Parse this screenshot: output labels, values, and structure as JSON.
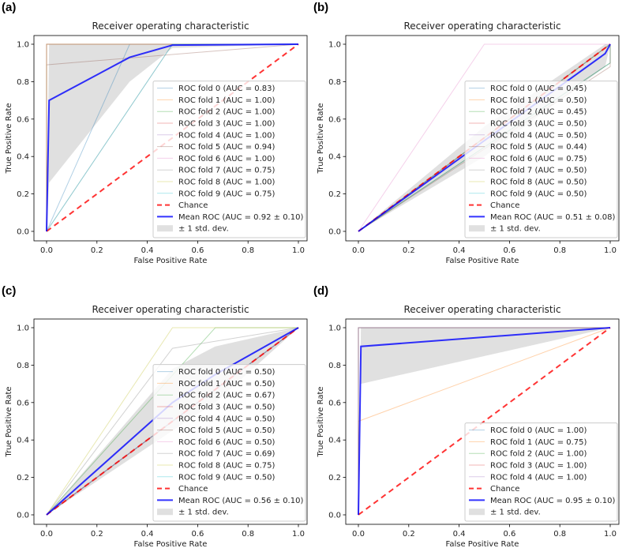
{
  "chart_data": [
    {
      "panel_label": "(a)",
      "type": "line",
      "title": "Receiver operating characteristic",
      "xlabel": "False Positive Rate",
      "ylabel": "True Positive Rate",
      "xlim": [
        0,
        1
      ],
      "ylim": [
        0,
        1
      ],
      "xticks": [
        "0.0",
        "0.2",
        "0.4",
        "0.6",
        "0.8",
        "1.0"
      ],
      "yticks": [
        "0.0",
        "0.2",
        "0.4",
        "0.6",
        "0.8",
        "1.0"
      ],
      "legend_position": "lower right",
      "folds": [
        {
          "name": "ROC fold 0 (AUC = 0.83)",
          "x": [
            0,
            0.33,
            1
          ],
          "y": [
            0,
            1,
            1
          ]
        },
        {
          "name": "ROC fold 1 (AUC = 1.00)",
          "x": [
            0,
            0,
            1
          ],
          "y": [
            0,
            1,
            1
          ]
        },
        {
          "name": "ROC fold 2 (AUC = 1.00)",
          "x": [
            0,
            0,
            1
          ],
          "y": [
            0,
            1,
            1
          ]
        },
        {
          "name": "ROC fold 3 (AUC = 1.00)",
          "x": [
            0,
            0,
            1
          ],
          "y": [
            0,
            1,
            1
          ]
        },
        {
          "name": "ROC fold 4 (AUC = 1.00)",
          "x": [
            0,
            0,
            1
          ],
          "y": [
            0,
            1,
            1
          ]
        },
        {
          "name": "ROC fold 5 (AUC = 0.94)",
          "x": [
            0,
            0,
            1
          ],
          "y": [
            0,
            0.89,
            1
          ]
        },
        {
          "name": "ROC fold 6 (AUC = 1.00)",
          "x": [
            0,
            0,
            1
          ],
          "y": [
            0,
            1,
            1
          ]
        },
        {
          "name": "ROC fold 7 (AUC = 0.75)",
          "x": [
            0,
            0.5,
            1
          ],
          "y": [
            0,
            1,
            1
          ]
        },
        {
          "name": "ROC fold 8 (AUC = 1.00)",
          "x": [
            0,
            0,
            1
          ],
          "y": [
            0,
            1,
            1
          ]
        },
        {
          "name": "ROC fold 9 (AUC = 0.75)",
          "x": [
            0,
            0.5,
            1
          ],
          "y": [
            0,
            1,
            1
          ]
        }
      ],
      "chance": "Chance",
      "mean": {
        "name": "Mean ROC (AUC = 0.92 ± 0.10)",
        "x": [
          0,
          0.01,
          0.33,
          0.5,
          1
        ],
        "y": [
          0,
          0.7,
          0.93,
          0.995,
          1
        ]
      },
      "band": {
        "name": "± 1 std. dev.",
        "x": [
          0,
          0.01,
          0.33,
          0.5,
          1
        ],
        "upper": [
          0,
          1,
          1,
          1,
          1
        ],
        "lower": [
          0,
          0.26,
          0.8,
          0.98,
          1
        ]
      }
    },
    {
      "panel_label": "(b)",
      "type": "line",
      "title": "Receiver operating characteristic",
      "xlabel": "False Positive Rate",
      "ylabel": "True Positive Rate",
      "xlim": [
        0,
        1
      ],
      "ylim": [
        0,
        1
      ],
      "xticks": [
        "0.0",
        "0.2",
        "0.4",
        "0.6",
        "0.8",
        "1.0"
      ],
      "yticks": [
        "0.0",
        "0.2",
        "0.4",
        "0.6",
        "0.8",
        "1.0"
      ],
      "legend_position": "lower right",
      "folds": [
        {
          "name": "ROC fold 0 (AUC = 0.45)",
          "x": [
            0,
            1,
            1
          ],
          "y": [
            0,
            0.9,
            1
          ]
        },
        {
          "name": "ROC fold 1 (AUC = 0.50)",
          "x": [
            0,
            1
          ],
          "y": [
            0,
            1
          ]
        },
        {
          "name": "ROC fold 2 (AUC = 0.45)",
          "x": [
            0,
            1,
            1
          ],
          "y": [
            0,
            0.9,
            1
          ]
        },
        {
          "name": "ROC fold 3 (AUC = 0.50)",
          "x": [
            0,
            1
          ],
          "y": [
            0,
            1
          ]
        },
        {
          "name": "ROC fold 4 (AUC = 0.50)",
          "x": [
            0,
            1
          ],
          "y": [
            0,
            1
          ]
        },
        {
          "name": "ROC fold 5 (AUC = 0.44)",
          "x": [
            0,
            1,
            1
          ],
          "y": [
            0,
            0.88,
            1
          ]
        },
        {
          "name": "ROC fold 6 (AUC = 0.75)",
          "x": [
            0,
            0.5,
            1
          ],
          "y": [
            0,
            1,
            1
          ]
        },
        {
          "name": "ROC fold 7 (AUC = 0.50)",
          "x": [
            0,
            1
          ],
          "y": [
            0,
            1
          ]
        },
        {
          "name": "ROC fold 8 (AUC = 0.50)",
          "x": [
            0,
            1
          ],
          "y": [
            0,
            1
          ]
        },
        {
          "name": "ROC fold 9 (AUC = 0.50)",
          "x": [
            0,
            1
          ],
          "y": [
            0,
            1
          ]
        }
      ],
      "chance": "Chance",
      "mean": {
        "name": "Mean ROC (AUC = 0.51 ± 0.08)",
        "x": [
          0,
          0.98,
          1
        ],
        "y": [
          0,
          0.95,
          1
        ]
      },
      "band": {
        "name": "± 1 std. dev.",
        "x": [
          0,
          0.5,
          0.98,
          1
        ],
        "upper": [
          0,
          0.56,
          1,
          1
        ],
        "lower": [
          0,
          0.4,
          0.88,
          1
        ]
      }
    },
    {
      "panel_label": "(c)",
      "type": "line",
      "title": "Receiver operating characteristic",
      "xlabel": "False Positive Rate",
      "ylabel": "True Positive Rate",
      "xlim": [
        0,
        1
      ],
      "ylim": [
        0,
        1
      ],
      "xticks": [
        "0.0",
        "0.2",
        "0.4",
        "0.6",
        "0.8",
        "1.0"
      ],
      "yticks": [
        "0.0",
        "0.2",
        "0.4",
        "0.6",
        "0.8",
        "1.0"
      ],
      "legend_position": "lower right",
      "folds": [
        {
          "name": "ROC fold 0 (AUC = 0.50)",
          "x": [
            0,
            1
          ],
          "y": [
            0,
            1
          ]
        },
        {
          "name": "ROC fold 1 (AUC = 0.50)",
          "x": [
            0,
            1
          ],
          "y": [
            0,
            1
          ]
        },
        {
          "name": "ROC fold 2 (AUC = 0.67)",
          "x": [
            0,
            0.67,
            1
          ],
          "y": [
            0,
            1,
            1
          ]
        },
        {
          "name": "ROC fold 3 (AUC = 0.50)",
          "x": [
            0,
            1
          ],
          "y": [
            0,
            1
          ]
        },
        {
          "name": "ROC fold 4 (AUC = 0.50)",
          "x": [
            0,
            1
          ],
          "y": [
            0,
            1
          ]
        },
        {
          "name": "ROC fold 5 (AUC = 0.50)",
          "x": [
            0,
            1
          ],
          "y": [
            0,
            1
          ]
        },
        {
          "name": "ROC fold 6 (AUC = 0.50)",
          "x": [
            0,
            1
          ],
          "y": [
            0,
            1
          ]
        },
        {
          "name": "ROC fold 7 (AUC = 0.69)",
          "x": [
            0,
            0.5,
            1
          ],
          "y": [
            0,
            0.89,
            1
          ]
        },
        {
          "name": "ROC fold 8 (AUC = 0.75)",
          "x": [
            0,
            0.5,
            1
          ],
          "y": [
            0,
            1,
            1
          ]
        },
        {
          "name": "ROC fold 9 (AUC = 0.50)",
          "x": [
            0,
            1
          ],
          "y": [
            0,
            1
          ]
        }
      ],
      "chance": "Chance",
      "mean": {
        "name": "Mean ROC (AUC = 0.56 ± 0.10)",
        "x": [
          0,
          0.5,
          0.67,
          1
        ],
        "y": [
          0,
          0.6,
          0.75,
          1
        ]
      },
      "band": {
        "name": "± 1 std. dev.",
        "x": [
          0,
          0.5,
          0.67,
          1
        ],
        "upper": [
          0,
          0.78,
          0.9,
          1
        ],
        "lower": [
          0,
          0.45,
          0.6,
          1
        ]
      }
    },
    {
      "panel_label": "(d)",
      "type": "line",
      "title": "Receiver operating characteristic",
      "xlabel": "False Positive Rate",
      "ylabel": "True Positive Rate",
      "xlim": [
        0,
        1
      ],
      "ylim": [
        0,
        1
      ],
      "xticks": [
        "0.0",
        "0.2",
        "0.4",
        "0.6",
        "0.8",
        "1.0"
      ],
      "yticks": [
        "0.0",
        "0.2",
        "0.4",
        "0.6",
        "0.8",
        "1.0"
      ],
      "legend_position": "lower right",
      "folds": [
        {
          "name": "ROC fold 0 (AUC = 1.00)",
          "x": [
            0,
            0,
            1
          ],
          "y": [
            0,
            1,
            1
          ]
        },
        {
          "name": "ROC fold 1 (AUC = 0.75)",
          "x": [
            0,
            0,
            1
          ],
          "y": [
            0,
            0.5,
            1
          ]
        },
        {
          "name": "ROC fold 2 (AUC = 1.00)",
          "x": [
            0,
            0,
            1
          ],
          "y": [
            0,
            1,
            1
          ]
        },
        {
          "name": "ROC fold 3 (AUC = 1.00)",
          "x": [
            0,
            0,
            1
          ],
          "y": [
            0,
            1,
            1
          ]
        },
        {
          "name": "ROC fold 4 (AUC = 1.00)",
          "x": [
            0,
            0,
            1
          ],
          "y": [
            0,
            1,
            1
          ]
        }
      ],
      "chance": "Chance",
      "mean": {
        "name": "Mean ROC (AUC = 0.95 ± 0.10)",
        "x": [
          0,
          0.01,
          1
        ],
        "y": [
          0,
          0.9,
          1
        ]
      },
      "band": {
        "name": "± 1 std. dev.",
        "x": [
          0,
          0.01,
          1
        ],
        "upper": [
          0,
          1,
          1
        ],
        "lower": [
          0,
          0.7,
          1
        ]
      }
    }
  ],
  "colors": {
    "folds": [
      "#1f77b4",
      "#ff7f0e",
      "#2ca02c",
      "#d62728",
      "#9467bd",
      "#8c564b",
      "#e377c2",
      "#7f7f7f",
      "#bcbd22",
      "#17becf"
    ],
    "mean": "#0000ff",
    "chance": "#ff0000",
    "band": "#bbbbbb"
  }
}
